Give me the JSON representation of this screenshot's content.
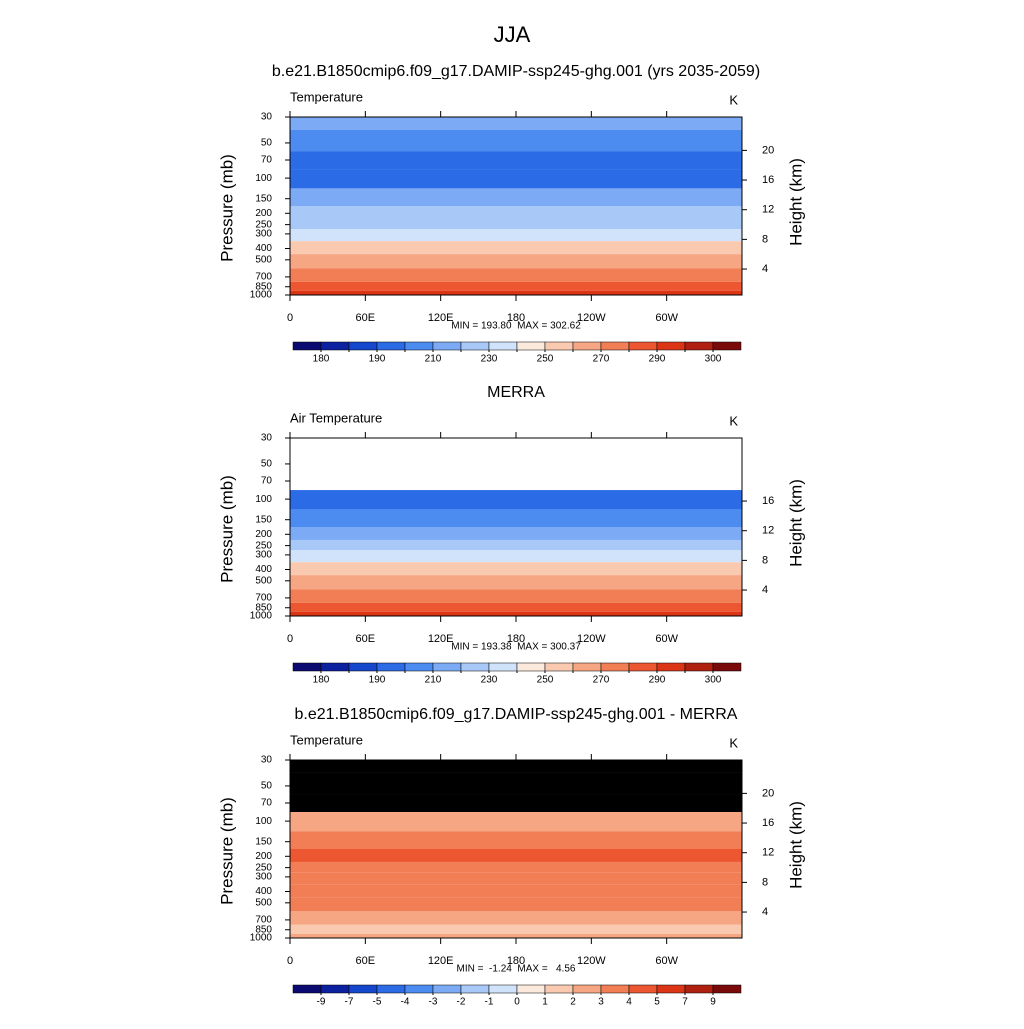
{
  "title": "JJA",
  "chart_data": [
    {
      "type": "contour",
      "title": "b.e21.B1850cmip6.f09_g17.DAMIP-ssp245-ghg.001 (yrs 2035-2059)",
      "subtitle": "Temperature",
      "units": "K",
      "y_label": "Pressure (mb)",
      "y2_label": "Height (km)",
      "ylog": true,
      "xlim": [
        0,
        360
      ],
      "xticks": [
        0,
        {
          "value": 60,
          "label": "60E"
        },
        {
          "value": 120,
          "label": "120E"
        },
        180,
        {
          "value": 240,
          "label": "120W"
        },
        {
          "value": 300,
          "label": "60W"
        }
      ],
      "ylim": [
        1000,
        30
      ],
      "yticks": [
        30,
        50,
        70,
        100,
        150,
        200,
        250,
        300,
        400,
        500,
        700,
        850,
        1000
      ],
      "y2lim": [
        0.5,
        24.5
      ],
      "y2ticks": [
        4,
        8,
        12,
        16,
        20
      ],
      "pressure": [
        30,
        50,
        70,
        100,
        150,
        200,
        250,
        300,
        400,
        500,
        700,
        850,
        1000
      ],
      "values": [
        214,
        206,
        198,
        199,
        212,
        220,
        228,
        238,
        252,
        262,
        278,
        287,
        294
      ],
      "missing_color": "#ffffff",
      "stats": "MIN = 193.80  MAX = 302.62",
      "colorbar": {
        "levels": [
          180,
          {
            "value": 185,
            "label": null
          },
          190,
          {
            "value": 200,
            "label": null
          },
          210,
          {
            "value": 220,
            "label": null
          },
          230,
          {
            "value": 240,
            "label": null
          },
          250,
          {
            "value": 260,
            "label": null
          },
          270,
          {
            "value": 280,
            "label": null
          },
          290,
          {
            "value": 295,
            "label": null
          },
          300
        ],
        "colors": [
          "#0a0a70",
          "#0c21a0",
          "#1547cc",
          "#2c6be6",
          "#4c8bf0",
          "#7caaf4",
          "#a8c9f8",
          "#d0e3fb",
          "#fbe9dc",
          "#f9caaf",
          "#f6a682",
          "#f27e56",
          "#ec5631",
          "#dc3515",
          "#b02010",
          "#7a0a0a"
        ]
      }
    },
    {
      "type": "contour",
      "title": "MERRA",
      "subtitle": "Air Temperature",
      "units": "K",
      "y_label": "Pressure (mb)",
      "y2_label": "Height (km)",
      "ylog": true,
      "xlim": [
        0,
        360
      ],
      "xticks": [
        0,
        {
          "value": 60,
          "label": "60E"
        },
        {
          "value": 120,
          "label": "120E"
        },
        180,
        {
          "value": 240,
          "label": "120W"
        },
        {
          "value": 300,
          "label": "60W"
        }
      ],
      "ylim": [
        1000,
        30
      ],
      "yticks": [
        30,
        50,
        70,
        100,
        150,
        200,
        250,
        300,
        400,
        500,
        700,
        850,
        1000
      ],
      "y2lim": [
        0.5,
        24.5
      ],
      "y2ticks": [
        4,
        8,
        12,
        16
      ],
      "pressure": [
        30,
        50,
        70,
        100,
        150,
        200,
        250,
        300,
        400,
        500,
        700,
        850,
        1000
      ],
      "values": [
        null,
        null,
        null,
        198,
        208,
        217,
        225,
        236,
        250,
        260,
        276,
        286,
        292
      ],
      "missing_color": "#ffffff",
      "stats": "MIN = 193.38  MAX = 300.37",
      "colorbar": {
        "levels": [
          180,
          {
            "value": 185,
            "label": null
          },
          190,
          {
            "value": 200,
            "label": null
          },
          210,
          {
            "value": 220,
            "label": null
          },
          230,
          {
            "value": 240,
            "label": null
          },
          250,
          {
            "value": 260,
            "label": null
          },
          270,
          {
            "value": 280,
            "label": null
          },
          290,
          {
            "value": 295,
            "label": null
          },
          300
        ],
        "colors": [
          "#0a0a70",
          "#0c21a0",
          "#1547cc",
          "#2c6be6",
          "#4c8bf0",
          "#7caaf4",
          "#a8c9f8",
          "#d0e3fb",
          "#fbe9dc",
          "#f9caaf",
          "#f6a682",
          "#f27e56",
          "#ec5631",
          "#dc3515",
          "#b02010",
          "#7a0a0a"
        ]
      }
    },
    {
      "type": "contour",
      "title": "b.e21.B1850cmip6.f09_g17.DAMIP-ssp245-ghg.001 - MERRA",
      "subtitle": "Temperature",
      "units": "K",
      "y_label": "Pressure (mb)",
      "y2_label": "Height (km)",
      "ylog": true,
      "xlim": [
        0,
        360
      ],
      "xticks": [
        0,
        {
          "value": 60,
          "label": "60E"
        },
        {
          "value": 120,
          "label": "120E"
        },
        180,
        {
          "value": 240,
          "label": "120W"
        },
        {
          "value": 300,
          "label": "60W"
        }
      ],
      "ylim": [
        1000,
        30
      ],
      "yticks": [
        30,
        50,
        70,
        100,
        150,
        200,
        250,
        300,
        400,
        500,
        700,
        850,
        1000
      ],
      "y2lim": [
        0.5,
        24.5
      ],
      "y2ticks": [
        4,
        8,
        12,
        16,
        20
      ],
      "pressure": [
        30,
        50,
        70,
        100,
        150,
        200,
        250,
        300,
        400,
        500,
        700,
        850,
        1000
      ],
      "values": [
        null,
        null,
        null,
        2.5,
        3.5,
        4.2,
        3.6,
        3.5,
        3.5,
        3.3,
        2.5,
        1.5,
        2.5
      ],
      "missing_color": "#000000",
      "stats": "MIN =  -1.24  MAX =   4.56",
      "colorbar": {
        "levels": [
          -9,
          -7,
          -5,
          -4,
          -3,
          -2,
          -1,
          0,
          1,
          2,
          3,
          4,
          5,
          7,
          9
        ],
        "colors": [
          "#0a0a70",
          "#0c21a0",
          "#1547cc",
          "#2c6be6",
          "#4c8bf0",
          "#7caaf4",
          "#a8c9f8",
          "#d0e3fb",
          "#fbe9dc",
          "#f9caaf",
          "#f6a682",
          "#f27e56",
          "#ec5631",
          "#dc3515",
          "#b02010",
          "#7a0a0a"
        ]
      }
    }
  ]
}
